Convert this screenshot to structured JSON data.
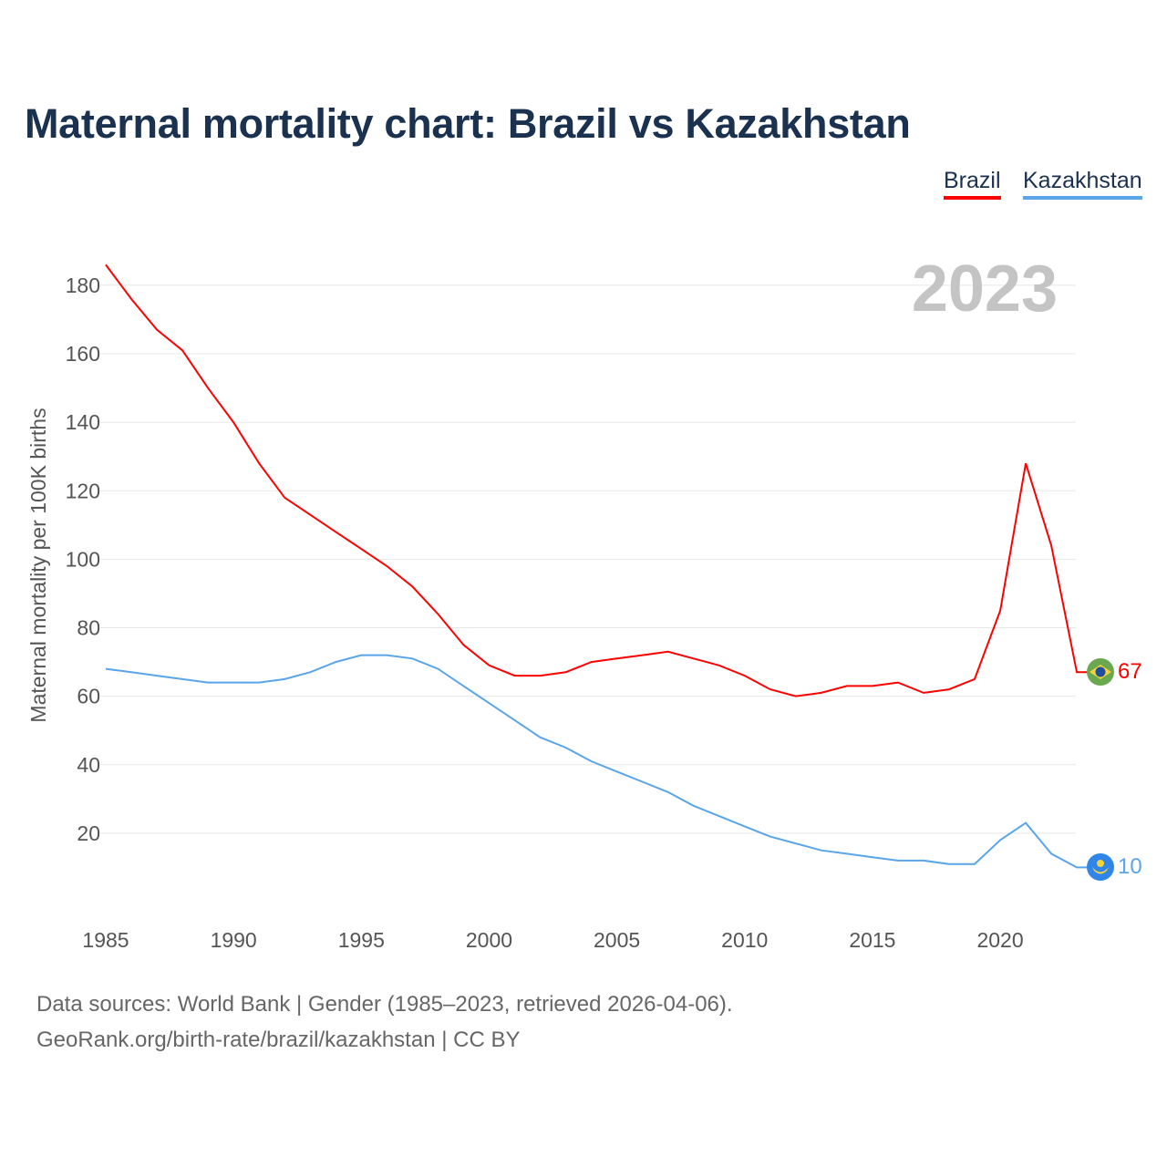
{
  "chart_data": {
    "type": "line",
    "title": "Maternal mortality chart: Brazil vs Kazakhstan",
    "ylabel": "Maternal mortality per 100K births",
    "xlabel": "",
    "year_label": "2023",
    "ylim": [
      0,
      190
    ],
    "xlim": [
      1985,
      2023
    ],
    "yticks": [
      20,
      40,
      60,
      80,
      100,
      120,
      140,
      160,
      180
    ],
    "xticks": [
      1985,
      1990,
      1995,
      2000,
      2005,
      2010,
      2015,
      2020
    ],
    "grid": true,
    "legend_position": "top-right",
    "x": [
      1985,
      1986,
      1987,
      1988,
      1989,
      1990,
      1991,
      1992,
      1993,
      1994,
      1995,
      1996,
      1997,
      1998,
      1999,
      2000,
      2001,
      2002,
      2003,
      2004,
      2005,
      2006,
      2007,
      2008,
      2009,
      2010,
      2011,
      2012,
      2013,
      2014,
      2015,
      2016,
      2017,
      2018,
      2019,
      2020,
      2021,
      2022,
      2023
    ],
    "series": [
      {
        "name": "Brazil",
        "color": "#ff0000",
        "end_label": "67",
        "values": [
          186,
          176,
          167,
          161,
          150,
          140,
          128,
          118,
          113,
          108,
          103,
          98,
          92,
          84,
          75,
          69,
          66,
          66,
          67,
          70,
          71,
          72,
          73,
          71,
          69,
          66,
          62,
          60,
          61,
          63,
          63,
          64,
          61,
          62,
          65,
          85,
          128,
          104,
          67
        ]
      },
      {
        "name": "Kazakhstan",
        "color": "#5aa5ea",
        "end_label": "10",
        "values": [
          68,
          67,
          66,
          65,
          64,
          64,
          64,
          65,
          67,
          70,
          72,
          72,
          71,
          68,
          63,
          58,
          53,
          48,
          45,
          41,
          38,
          35,
          32,
          28,
          25,
          22,
          19,
          17,
          15,
          14,
          13,
          12,
          12,
          11,
          11,
          18,
          23,
          14,
          10
        ]
      }
    ]
  },
  "footer": {
    "line1": "Data sources: World Bank | Gender (1985–2023, retrieved 2026-04-06).",
    "line2": "GeoRank.org/birth-rate/brazil/kazakhstan | CC BY"
  }
}
